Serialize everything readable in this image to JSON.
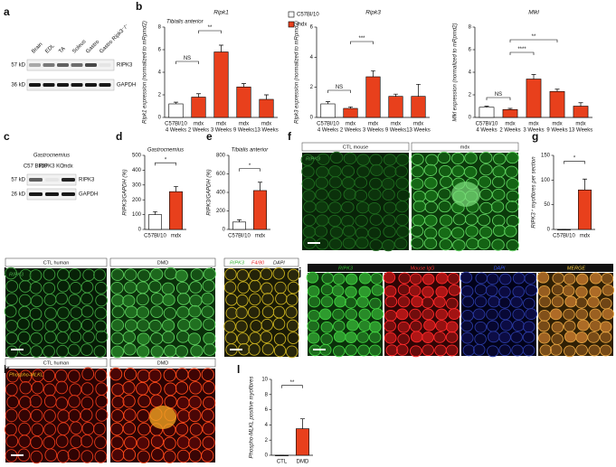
{
  "panels": [
    "a",
    "b",
    "c",
    "d",
    "e",
    "f",
    "g",
    "h",
    "i",
    "j",
    "k",
    "l"
  ],
  "blot_a": {
    "lanes": [
      "Brain",
      "EDL",
      "TA",
      "Soleus",
      "Gastro",
      "Gastro Ripk3⁻/⁻"
    ],
    "markers": [
      "57 kD",
      "36 kD"
    ],
    "bands": [
      "RIPK3",
      "GAPDH"
    ]
  },
  "blot_c": {
    "title": "Gastrocnemius",
    "lanes": [
      "C57 Bl/10",
      "RIPK3 KO",
      "mdx"
    ],
    "markers": [
      "57 kD",
      "26 kD"
    ],
    "bands": [
      "RIPK3",
      "GAPDH"
    ]
  },
  "images": {
    "f": {
      "labels": [
        "CTL mouse",
        "mdx"
      ],
      "stain": "RIPK3"
    },
    "h": {
      "labels": [
        "CTL human",
        "DMD"
      ],
      "stain": "RIPK3"
    },
    "i": {
      "stains": [
        "RIPK3",
        "F4/80",
        "DAPI"
      ]
    },
    "j": {
      "labels": [
        "RIPK3",
        "Mouse IgG",
        "DAPI",
        "MERGE"
      ]
    },
    "k": {
      "labels": [
        "CTL human",
        "DMD"
      ],
      "stain": "Phospho-MLKL"
    }
  },
  "chart_data": [
    {
      "type": "bar",
      "title": "Ripk1",
      "subtitle": "Tibialis anterior",
      "y_label": "Ripk1 expression (normalized to mRpmd2)",
      "categories": [
        "C57Bl/10",
        "mdx",
        "mdx",
        "mdx",
        "mdx"
      ],
      "sublabels": [
        "4 Weeks",
        "2 Weeks",
        "3 Weeks",
        "9 Weeks",
        "13 Weeks"
      ],
      "values": [
        1.2,
        1.8,
        5.8,
        2.7,
        1.6
      ],
      "errors": [
        0.15,
        0.3,
        0.6,
        0.3,
        0.4
      ],
      "colors": [
        "#ffffff",
        "#e8401c",
        "#e8401c",
        "#e8401c",
        "#e8401c"
      ],
      "ylim": [
        0,
        8
      ],
      "yticks": [
        0,
        2,
        4,
        6,
        8
      ],
      "annotations": [
        "NS",
        "**"
      ],
      "legend": [
        {
          "name": "C57Bl/10",
          "color": "#ffffff"
        },
        {
          "name": "mdx",
          "color": "#e8401c"
        }
      ]
    },
    {
      "type": "bar",
      "title": "Ripk3",
      "y_label": "Ripk3 expression (normalized to mRpmd2)",
      "categories": [
        "C57Bl/10",
        "mdx",
        "mdx",
        "mdx",
        "mdx"
      ],
      "sublabels": [
        "4 Weeks",
        "2 Weeks",
        "3 Weeks",
        "9 Weeks",
        "13 Weeks"
      ],
      "values": [
        0.9,
        0.6,
        2.7,
        1.4,
        1.4
      ],
      "errors": [
        0.15,
        0.1,
        0.4,
        0.15,
        0.8
      ],
      "colors": [
        "#ffffff",
        "#e8401c",
        "#e8401c",
        "#e8401c",
        "#e8401c"
      ],
      "ylim": [
        0,
        6
      ],
      "yticks": [
        0,
        2,
        4,
        6
      ],
      "annotations": [
        "NS",
        "***"
      ]
    },
    {
      "type": "bar",
      "title": "Mlkl",
      "y_label": "Mlkl expression (normalized to mRpmd2)",
      "categories": [
        "C57Bl/10",
        "mdx",
        "mdx",
        "mdx",
        "mdx"
      ],
      "sublabels": [
        "4 Weeks",
        "2 Weeks",
        "3 Weeks",
        "9 Weeks",
        "13 Weeks"
      ],
      "values": [
        0.9,
        0.7,
        3.4,
        2.3,
        1.0
      ],
      "errors": [
        0.1,
        0.1,
        0.4,
        0.2,
        0.3
      ],
      "colors": [
        "#ffffff",
        "#e8401c",
        "#e8401c",
        "#e8401c",
        "#e8401c"
      ],
      "ylim": [
        0,
        8
      ],
      "yticks": [
        0,
        2,
        4,
        6,
        8
      ],
      "annotations": [
        "NS",
        "****",
        "**"
      ]
    },
    {
      "type": "bar",
      "subtitle": "Gastrocnemius",
      "y_label": "RIPK3/GAPDH (%)",
      "categories": [
        "C57Bl/10",
        "mdx"
      ],
      "values": [
        100,
        255
      ],
      "errors": [
        20,
        35
      ],
      "colors": [
        "#ffffff",
        "#e8401c"
      ],
      "ylim": [
        0,
        500
      ],
      "yticks": [
        0,
        100,
        200,
        300,
        400,
        500
      ],
      "annotations": [
        "*"
      ]
    },
    {
      "type": "bar",
      "subtitle": "Tibialis anterior",
      "y_label": "RIPK3/GAPDH (%)",
      "categories": [
        "C57Bl/10",
        "mdx"
      ],
      "values": [
        80,
        420
      ],
      "errors": [
        25,
        90
      ],
      "colors": [
        "#ffffff",
        "#e8401c"
      ],
      "ylim": [
        0,
        800
      ],
      "yticks": [
        0,
        200,
        400,
        600,
        800
      ],
      "annotations": [
        "*"
      ]
    },
    {
      "type": "bar",
      "y_label": "RIPK3⁺ myofibres per section",
      "categories": [
        "C57Bl/10",
        "mdx"
      ],
      "values": [
        0,
        80
      ],
      "errors": [
        0,
        22
      ],
      "colors": [
        "#ffffff",
        "#e8401c"
      ],
      "ylim": [
        0,
        150
      ],
      "yticks": [
        0,
        50,
        100,
        150
      ],
      "annotations": [
        "*"
      ]
    },
    {
      "type": "bar",
      "y_label": "Phospho-MLKL positive myofibres",
      "categories": [
        "CTL",
        "DMD"
      ],
      "values": [
        0,
        3.5
      ],
      "errors": [
        0,
        1.3
      ],
      "colors": [
        "#ffffff",
        "#e8401c"
      ],
      "ylim": [
        0,
        10
      ],
      "yticks": [
        0,
        2,
        4,
        6,
        8,
        10
      ],
      "annotations": [
        "**"
      ]
    }
  ]
}
